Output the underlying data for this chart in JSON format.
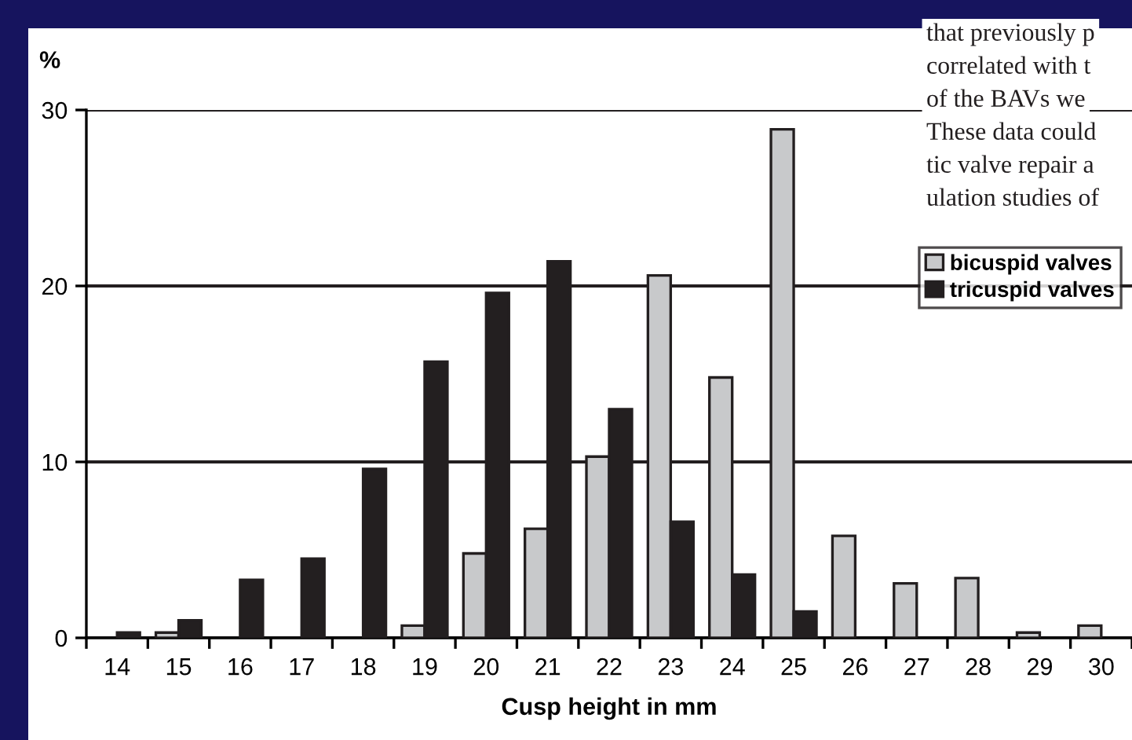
{
  "chart_data": {
    "type": "bar",
    "xlabel": "Cusp height in mm",
    "ylabel": "%",
    "categories": [
      "14",
      "15",
      "16",
      "17",
      "18",
      "19",
      "20",
      "21",
      "22",
      "23",
      "24",
      "25",
      "26",
      "27",
      "28",
      "29",
      "30"
    ],
    "series": [
      {
        "name": "bicuspid valves",
        "color": "#c8c9cb",
        "values": [
          null,
          0.3,
          null,
          null,
          null,
          0.7,
          4.8,
          6.2,
          10.3,
          20.6,
          14.8,
          28.9,
          5.8,
          3.1,
          3.4,
          0.3,
          0.7
        ]
      },
      {
        "name": "tricuspid valves",
        "color": "#231f20",
        "values": [
          0.3,
          1.0,
          3.3,
          4.5,
          9.6,
          15.7,
          19.6,
          21.4,
          13.0,
          6.6,
          3.6,
          1.5,
          null,
          null,
          null,
          null,
          null
        ]
      }
    ],
    "ylim": [
      0,
      30
    ],
    "yticks": [
      0,
      10,
      20,
      30
    ],
    "grid": "y",
    "legend": "top right",
    "annotations": [
      "that previously p",
      "correlated with t",
      "of the BAVs we",
      "These data could",
      "tic valve repair a",
      "ulation studies of"
    ]
  }
}
